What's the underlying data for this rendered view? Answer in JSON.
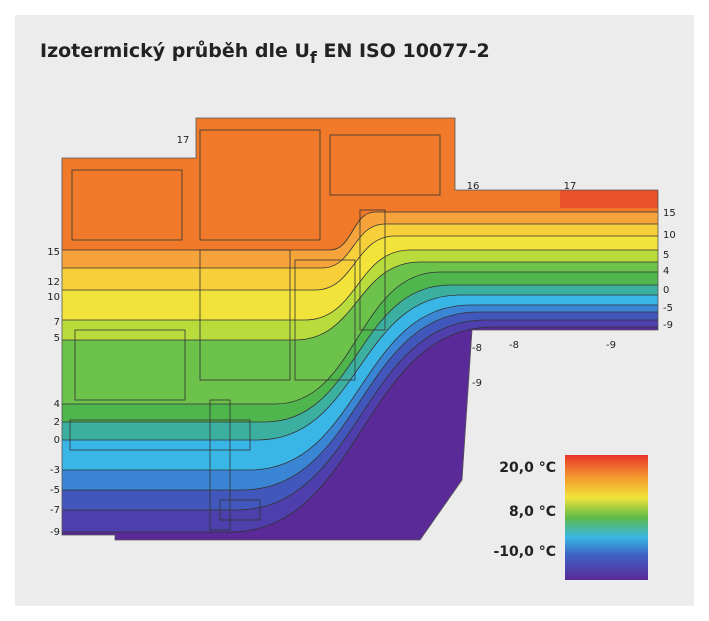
{
  "title": {
    "before": "Izotermický průběh dle U",
    "sub": "f",
    "after": " EN ISO 10077-2"
  },
  "labels_left": [
    "15",
    "12",
    "10",
    "7",
    "5",
    "4",
    "2",
    "0",
    "-3",
    "-5",
    "-7",
    "-9"
  ],
  "labels_right": [
    "15",
    "10",
    "5",
    "4",
    "0",
    "-5",
    "-9"
  ],
  "labels_top": [
    "17",
    "16",
    "17"
  ],
  "labels_bottom": [
    "-8",
    "-8",
    "-9",
    "-9"
  ],
  "legend": [
    "20,0 °C",
    "8,0 °C",
    "-10,0 °C"
  ]
}
